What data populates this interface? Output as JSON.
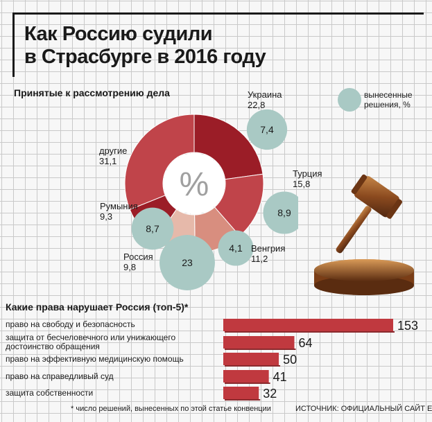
{
  "title_line1": "Как Россию судили",
  "title_line2": "в Страсбурге в 2016 году",
  "donut_heading": "Принятые к рассмотрению дела",
  "legend_text": "вынесенные решения, %",
  "legend_line1": "вынесенные",
  "legend_line2": "решения, %",
  "center_symbol": "%",
  "colors": {
    "donut_dark": "#9b1d27",
    "donut_mid": "#c0444a",
    "donut_light": "#d88e7f",
    "donut_pale": "#e6b9aa",
    "bubble": "#a9c9c4",
    "bar": "#c0393f"
  },
  "chart_data": [
    {
      "type": "pie",
      "title": "Принятые к рассмотрению дела",
      "slices": [
        {
          "label": "Украина",
          "value": 22.8,
          "decisions": 7.4
        },
        {
          "label": "Турция",
          "value": 15.8,
          "decisions": 8.9
        },
        {
          "label": "Венгрия",
          "value": 11.2,
          "decisions": 4.1
        },
        {
          "label": "Россия",
          "value": 9.8,
          "decisions": 23
        },
        {
          "label": "Румыния",
          "value": 9.3,
          "decisions": 8.7
        },
        {
          "label": "другие",
          "value": 31.1
        }
      ]
    },
    {
      "type": "bar",
      "title": "Какие права нарушает Россия (топ-5)*",
      "categories": [
        "право на свободу и безопасность",
        "защита от бесчеловечного или унижающего достоинство обращения",
        "право на эффективную медицинскую помощь",
        "право на справедливый суд",
        "защита собственности"
      ],
      "values": [
        153,
        64,
        50,
        41,
        32
      ]
    }
  ],
  "bar_heading": "Какие права нарушает Россия (топ-5)*",
  "bar_labels": [
    "право на свободу и безопасность",
    "защита от бесчеловечного или унижающего",
    "достоинство обращения",
    "право на эффективную медицинскую помощь",
    "право на справедливый суд",
    "защита собственности"
  ],
  "footnote": "* число решений, вынесенных по этой статье конвенции",
  "source": "ИСТОЧНИК: ОФИЦИАЛЬНЫЙ САЙТ ЕСПЧ"
}
